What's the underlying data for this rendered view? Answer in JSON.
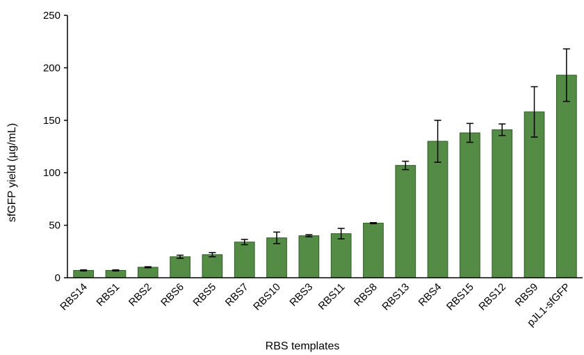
{
  "chart_data": {
    "type": "bar",
    "xlabel": "RBS templates",
    "ylabel": "sfGFP yield (µg/mL)",
    "ylim": [
      0,
      250
    ],
    "yticks": [
      0,
      50,
      100,
      150,
      200,
      250
    ],
    "grid": false,
    "bar_color": "#548b45",
    "bar_edge_color": "#2f5a26",
    "categories": [
      "RBS14",
      "RBS1",
      "RBS2",
      "RBS6",
      "RBS5",
      "RBS7",
      "RBS10",
      "RBS3",
      "RBS11",
      "RBS8",
      "RBS13",
      "RBS4",
      "RBS15",
      "RBS12",
      "RBS9",
      "pJL1-sfGFP"
    ],
    "values": [
      7,
      7,
      10,
      20,
      22,
      34,
      38,
      40,
      42,
      52,
      107,
      130,
      138,
      141,
      158,
      193
    ],
    "errors": [
      0.5,
      0.5,
      0.5,
      1.5,
      2,
      2.5,
      5.5,
      1,
      5,
      0.5,
      4,
      20,
      9,
      5.5,
      24,
      25
    ]
  }
}
